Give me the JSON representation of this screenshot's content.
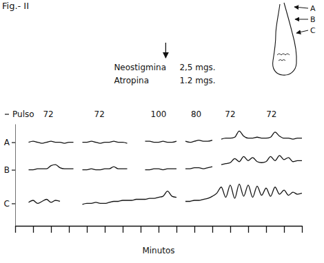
{
  "chart_data": {
    "type": "line",
    "title": "Fig.- II",
    "xlabel": "Minutos",
    "x": [
      0.5,
      0.75,
      1,
      1.25,
      1.5,
      1.75,
      2,
      2.25,
      2.5,
      2.75,
      3,
      3.25,
      3.5,
      3.75,
      4,
      4.25,
      4.5,
      4.75,
      5,
      5.25,
      5.5,
      5.75,
      6,
      6.25,
      6.5,
      6.75,
      7,
      7.25,
      7.5,
      7.75,
      8,
      8.25,
      8.5,
      8.75,
      9,
      9.25,
      9.5,
      9.75,
      10,
      10.25,
      10.5,
      10.75,
      11,
      11.25,
      11.5,
      11.75,
      12,
      12.25,
      12.5,
      12.75,
      13,
      13.25,
      13.5,
      13.75,
      14,
      14.25,
      14.5,
      14.75,
      15,
      15.25,
      15.5,
      15.75,
      16
    ],
    "xlim": [
      0,
      16
    ],
    "xticks": [
      0,
      1,
      2,
      3,
      4,
      5,
      6,
      7,
      8,
      9,
      10,
      11,
      12,
      13,
      14,
      15,
      16
    ],
    "ylim": [
      0,
      10
    ],
    "yticks": [
      {
        "value": 8.2,
        "label": "A"
      },
      {
        "value": 5.5,
        "label": "B"
      },
      {
        "value": 2.2,
        "label": "C"
      }
    ],
    "tick_labels": "y",
    "series": [
      {
        "color": "#111111",
        "values": [
          null,
          8.2,
          8.3,
          8.2,
          8.1,
          8.2,
          8.3,
          8.2,
          8.2,
          8.1,
          8.2,
          8.2,
          null,
          8.2,
          8.2,
          8.3,
          8.2,
          8.1,
          8.2,
          8.2,
          8.3,
          8.2,
          8.2,
          8.1,
          null,
          null,
          null,
          8.3,
          8.3,
          8.2,
          8.2,
          8.3,
          8.2,
          8.2,
          8.3,
          null,
          8.3,
          8.2,
          8.3,
          8.4,
          8.3,
          8.3,
          8.4,
          null,
          8.5,
          8.6,
          8.6,
          8.7,
          9.3,
          8.8,
          8.6,
          8.6,
          8.7,
          8.6,
          8.6,
          8.7,
          9.2,
          8.8,
          8.6,
          8.6,
          8.5,
          8.6,
          8.6
        ]
      },
      {
        "color": "#111111",
        "values": [
          null,
          5.5,
          5.5,
          5.6,
          5.6,
          5.6,
          5.9,
          6.0,
          5.7,
          5.6,
          5.6,
          5.6,
          null,
          5.5,
          5.5,
          5.6,
          5.5,
          5.5,
          5.6,
          5.6,
          5.8,
          5.6,
          5.6,
          5.6,
          null,
          null,
          null,
          5.5,
          5.5,
          5.6,
          5.6,
          5.5,
          5.6,
          5.6,
          5.6,
          null,
          5.6,
          5.6,
          5.7,
          5.7,
          5.6,
          5.7,
          5.8,
          null,
          6.0,
          6.1,
          6.2,
          6.6,
          6.3,
          6.8,
          6.4,
          6.7,
          6.3,
          6.2,
          6.3,
          6.8,
          6.4,
          6.9,
          6.5,
          6.7,
          6.3,
          6.4,
          6.4
        ]
      },
      {
        "color": "#111111",
        "values": [
          null,
          2.3,
          2.5,
          2.2,
          2.4,
          2.6,
          2.3,
          2.5,
          2.4,
          null,
          null,
          null,
          null,
          2.1,
          2.2,
          2.2,
          2.3,
          2.2,
          2.2,
          2.3,
          2.4,
          2.4,
          2.5,
          2.5,
          2.5,
          2.6,
          2.6,
          2.6,
          2.7,
          2.7,
          2.8,
          2.9,
          3.4,
          2.9,
          2.8,
          null,
          2.4,
          2.4,
          2.5,
          2.5,
          2.6,
          2.7,
          2.9,
          3.2,
          3.8,
          2.8,
          4.0,
          2.7,
          4.1,
          2.9,
          4.0,
          2.8,
          3.9,
          3.0,
          3.7,
          2.9,
          3.8,
          3.1,
          3.5,
          3.0,
          3.3,
          3.1,
          3.2
        ]
      }
    ],
    "pulse": {
      "label": "Pulso",
      "x": [
        1.85,
        4.7,
        8.0,
        10.1,
        12.0,
        14.3
      ],
      "values": [
        72,
        72,
        100,
        80,
        72,
        72
      ]
    },
    "annotations": [
      {
        "x": 8.4,
        "lines": [
          {
            "text": "Neostigmina",
            "dose": "2,5 mgs."
          },
          {
            "text": "Atropina",
            "dose": "1.2 mgs."
          }
        ]
      }
    ],
    "inset_labels": [
      "A",
      "B",
      "C"
    ]
  }
}
